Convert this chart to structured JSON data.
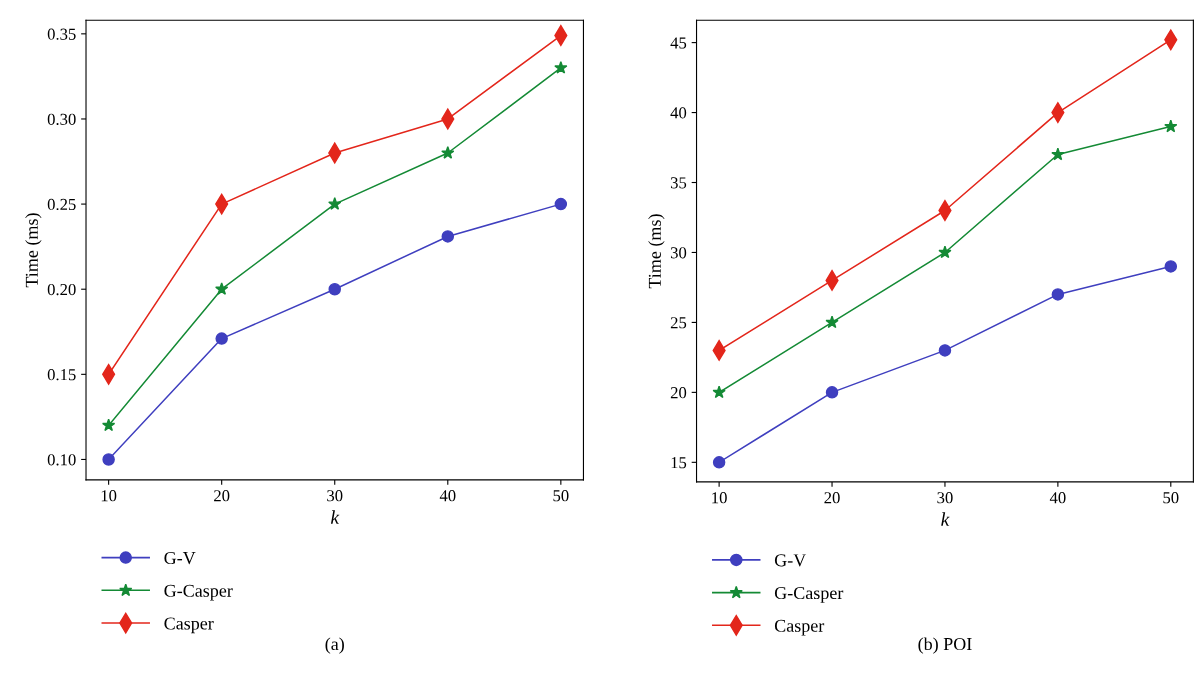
{
  "chart_data": [
    {
      "type": "line",
      "xlabel": "k",
      "ylabel": "Time (ms)",
      "x": [
        10,
        20,
        30,
        40,
        50
      ],
      "xlim": [
        8,
        52
      ],
      "xticks": [
        10,
        20,
        30,
        40,
        50
      ],
      "ylim": [
        0.088,
        0.358
      ],
      "yticks": [
        {
          "value": 0.1,
          "label": "0.10"
        },
        {
          "value": 0.15,
          "label": "0.15"
        },
        {
          "value": 0.2,
          "label": "0.20"
        },
        {
          "value": 0.25,
          "label": "0.25"
        },
        {
          "value": 0.3,
          "label": "0.30"
        },
        {
          "value": 0.35,
          "label": "0.35"
        }
      ],
      "grid": false,
      "legend": "bottom",
      "line_style": "solid",
      "annotations": [
        "(a)"
      ],
      "series": [
        {
          "name": "G-V",
          "color": "#3f3fbf",
          "marker": "circle",
          "values": [
            0.1,
            0.171,
            0.2,
            0.231,
            0.25
          ]
        },
        {
          "name": "G-Casper",
          "color": "#148a35",
          "marker": "star",
          "values": [
            0.12,
            0.2,
            0.25,
            0.28,
            0.33
          ]
        },
        {
          "name": "Casper",
          "color": "#e3261b",
          "marker": "diamond",
          "values": [
            0.15,
            0.25,
            0.28,
            0.3,
            0.349
          ]
        }
      ]
    },
    {
      "type": "line",
      "xlabel": "k",
      "ylabel": "Time (ms)",
      "x": [
        10,
        20,
        30,
        40,
        50
      ],
      "xlim": [
        8,
        52
      ],
      "xticks": [
        10,
        20,
        30,
        40,
        50
      ],
      "ylim": [
        13.6,
        46.6
      ],
      "yticks": [
        15,
        20,
        25,
        30,
        35,
        40,
        45
      ],
      "grid": false,
      "legend": "bottom",
      "line_style": "solid",
      "annotations": [
        "(b) POI"
      ],
      "series": [
        {
          "name": "G-V",
          "color": "#3f3fbf",
          "marker": "circle",
          "values": [
            15,
            20,
            23,
            27,
            29
          ]
        },
        {
          "name": "G-Casper",
          "color": "#148a35",
          "marker": "star",
          "values": [
            20,
            25,
            30,
            37,
            39
          ]
        },
        {
          "name": "Casper",
          "color": "#e3261b",
          "marker": "diamond",
          "values": [
            23,
            28,
            33,
            40,
            45.2
          ]
        }
      ]
    }
  ]
}
